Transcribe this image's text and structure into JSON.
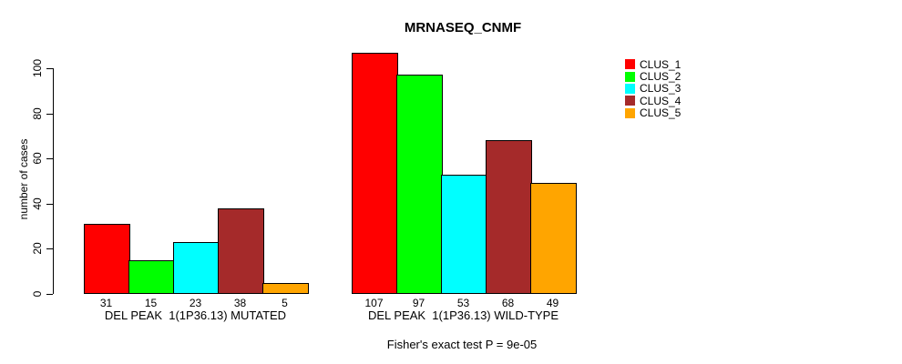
{
  "chart_data": {
    "type": "bar",
    "title": "MRNASEQ_CNMF",
    "ylabel": "number of cases",
    "xlabel": "",
    "annotation": "Fisher's exact test P = 9e-05",
    "grid": false,
    "legend_position": "right",
    "yticks": [
      0,
      20,
      40,
      60,
      80,
      100
    ],
    "ylim": [
      0,
      107
    ],
    "legend_labels": [
      "CLUS_1",
      "CLUS_2",
      "CLUS_3",
      "CLUS_4",
      "CLUS_5"
    ],
    "series_colors": [
      "#FF0000",
      "#00FF00",
      "#00FFFF",
      "#A52A2A",
      "#FFA500"
    ],
    "groups": [
      {
        "label": "DEL PEAK  1(1P36.13) MUTATED",
        "values": [
          31,
          15,
          23,
          38,
          5
        ]
      },
      {
        "label": "DEL PEAK  1(1P36.13) WILD-TYPE",
        "values": [
          107,
          97,
          53,
          68,
          49
        ]
      }
    ]
  }
}
